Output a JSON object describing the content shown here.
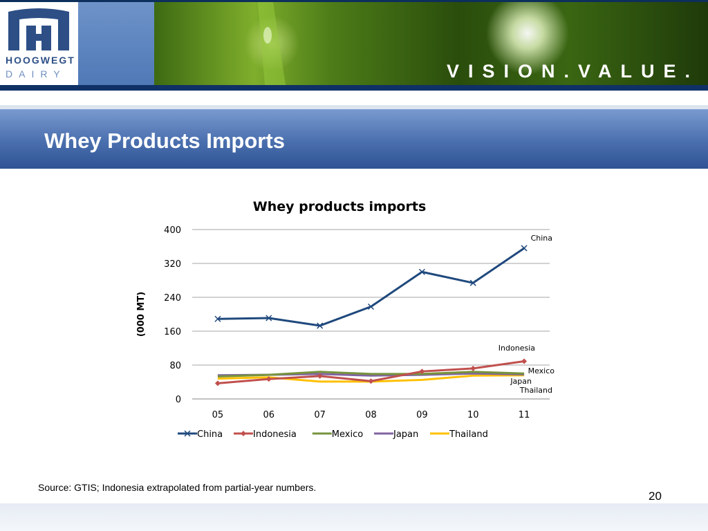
{
  "header": {
    "logo_line1": "HOOGWEGT",
    "logo_line2": "DAIRY",
    "tagline": "VISION.VALUE."
  },
  "slide": {
    "title": "Whey Products Imports",
    "source": "Source: GTIS; Indonesia extrapolated from partial-year numbers.",
    "page_number": "20"
  },
  "colors": {
    "header_navy": "#0f3166",
    "title_band": "#4a6fae",
    "china": "#1f497d",
    "indonesia": "#c0504d",
    "mexico": "#77933c",
    "japan": "#8064a2",
    "thailand": "#ffc000"
  },
  "chart_data": {
    "type": "line",
    "title": "Whey products imports",
    "xlabel": "",
    "ylabel": "(000 MT)",
    "categories": [
      "05",
      "06",
      "07",
      "08",
      "09",
      "10",
      "11"
    ],
    "ylim": [
      0,
      400
    ],
    "yticks": [
      "0",
      "80",
      "160",
      "240",
      "320",
      "400"
    ],
    "grid": true,
    "legend": "bottom",
    "series": [
      {
        "name": "China",
        "values": [
          189,
          191,
          173,
          218,
          300,
          274,
          356
        ],
        "marker": "x",
        "color": "#1f497d"
      },
      {
        "name": "Indonesia",
        "values": [
          37,
          47,
          54,
          42,
          65,
          72,
          89
        ],
        "marker": "diamond",
        "color": "#c0504d"
      },
      {
        "name": "Mexico",
        "values": [
          53,
          57,
          64,
          59,
          59,
          64,
          60
        ],
        "marker": "none",
        "color": "#77933c"
      },
      {
        "name": "Japan",
        "values": [
          56,
          57,
          59,
          55,
          57,
          60,
          58
        ],
        "marker": "none",
        "color": "#8064a2"
      },
      {
        "name": "Thailand",
        "values": [
          48,
          51,
          41,
          41,
          45,
          55,
          56
        ],
        "marker": "none",
        "color": "#ffc000"
      }
    ],
    "annotations": [
      "China",
      "Indonesia",
      "Mexico",
      "Japan",
      "Thailand"
    ]
  }
}
